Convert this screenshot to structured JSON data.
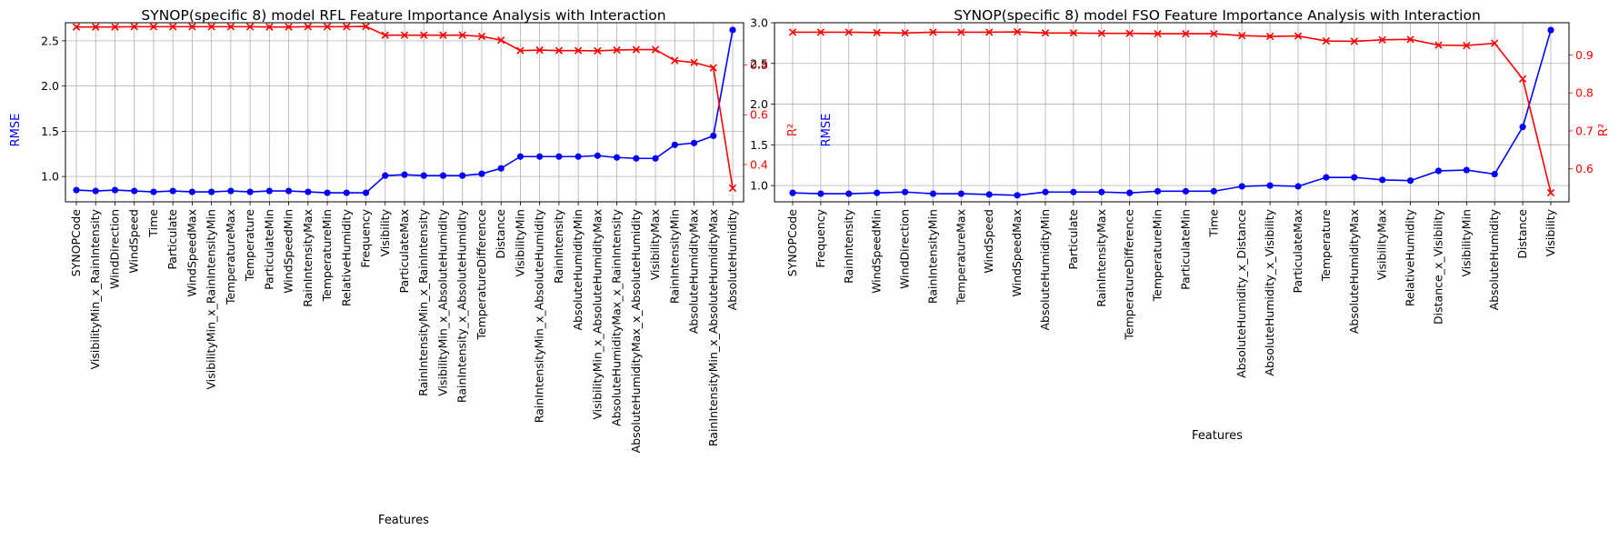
{
  "chart_data": [
    {
      "type": "line",
      "title": "SYNOP(specific 8) model RFL Feature Importance Analysis with Interaction",
      "xlabel": "Features",
      "ylabel_left": "RMSE",
      "ylabel_right": "R²",
      "grid": true,
      "ylim_left": [
        0.72,
        2.7
      ],
      "ylim_right": [
        0.25,
        0.97
      ],
      "yticks_left": [
        "1.0",
        "1.5",
        "2.0",
        "2.5"
      ],
      "yticks_right": [
        "0.4",
        "0.6",
        "0.8"
      ],
      "categories": [
        "SYNOPCode",
        "VisibilityMin_x_RainIntensity",
        "WindDirection",
        "WindSpeed",
        "Time",
        "Particulate",
        "WindSpeedMax",
        "VisibilityMin_x_RainIntensityMin",
        "TemperatureMax",
        "Temperature",
        "ParticulateMin",
        "WindSpeedMin",
        "RainIntensityMax",
        "TemperatureMin",
        "RelativeHumidity",
        "Frequency",
        "Visibility",
        "ParticulateMax",
        "RainIntensityMin_x_RainIntensity",
        "VisibilityMin_x_AbsoluteHumidity",
        "RainIntensity_x_AbsoluteHumidity",
        "TemperatureDifference",
        "Distance",
        "VisibilityMin",
        "RainIntensityMin_x_AbsoluteHumidity",
        "RainIntensity",
        "AbsoluteHumidityMin",
        "VisibilityMin_x_AbsoluteHumidityMax",
        "AbsoluteHumidityMax_x_RainIntensity",
        "AbsoluteHumidityMax_x_AbsoluteHumidity",
        "VisibilityMax",
        "RainIntensityMin",
        "AbsoluteHumidityMax",
        "RainIntensityMin_x_AbsoluteHumidityMax",
        "AbsoluteHumidity"
      ],
      "series": [
        {
          "name": "RMSE",
          "axis": "left",
          "color": "#0000ff",
          "marker": "circle",
          "values": [
            0.85,
            0.84,
            0.85,
            0.84,
            0.83,
            0.84,
            0.83,
            0.83,
            0.84,
            0.83,
            0.84,
            0.84,
            0.83,
            0.82,
            0.82,
            0.82,
            1.01,
            1.02,
            1.01,
            1.01,
            1.01,
            1.03,
            1.09,
            1.22,
            1.22,
            1.22,
            1.22,
            1.23,
            1.21,
            1.2,
            1.2,
            1.35,
            1.37,
            1.45,
            2.62
          ]
        },
        {
          "name": "R²",
          "axis": "right",
          "color": "#ff0000",
          "marker": "x",
          "values": [
            0.953,
            0.953,
            0.953,
            0.954,
            0.954,
            0.954,
            0.954,
            0.954,
            0.954,
            0.954,
            0.953,
            0.953,
            0.954,
            0.954,
            0.954,
            0.955,
            0.92,
            0.92,
            0.92,
            0.92,
            0.92,
            0.915,
            0.9,
            0.858,
            0.86,
            0.858,
            0.858,
            0.857,
            0.86,
            0.862,
            0.862,
            0.818,
            0.81,
            0.789,
            0.305
          ]
        }
      ]
    },
    {
      "type": "line",
      "title": "SYNOP(specific 8) model FSO Feature Importance Analysis with Interaction",
      "xlabel": "Features",
      "ylabel_left": "RMSE",
      "ylabel_right": "R²",
      "grid": true,
      "ylim_left": [
        0.8,
        3.0
      ],
      "ylim_right": [
        0.513,
        0.985
      ],
      "yticks_left": [
        "1.0",
        "1.5",
        "2.0",
        "2.5",
        "3.0"
      ],
      "yticks_right": [
        "0.6",
        "0.7",
        "0.8",
        "0.9"
      ],
      "categories": [
        "SYNOPCode",
        "Frequency",
        "RainIntensity",
        "WindSpeedMin",
        "WindDirection",
        "RainIntensityMin",
        "TemperatureMax",
        "WindSpeed",
        "WindSpeedMax",
        "AbsoluteHumidityMin",
        "Particulate",
        "RainIntensityMax",
        "TemperatureDifference",
        "TemperatureMin",
        "ParticulateMin",
        "Time",
        "AbsoluteHumidity_x_Distance",
        "AbsoluteHumidity_x_Visibility",
        "ParticulateMax",
        "Temperature",
        "AbsoluteHumidityMax",
        "VisibilityMax",
        "RelativeHumidity",
        "Distance_x_Visibility",
        "VisibilityMin",
        "AbsoluteHumidity",
        "Distance",
        "Visibility"
      ],
      "series": [
        {
          "name": "RMSE",
          "axis": "left",
          "color": "#0000ff",
          "marker": "circle",
          "values": [
            0.91,
            0.9,
            0.9,
            0.91,
            0.92,
            0.9,
            0.9,
            0.89,
            0.88,
            0.92,
            0.92,
            0.92,
            0.91,
            0.93,
            0.93,
            0.93,
            0.99,
            1.0,
            0.99,
            1.1,
            1.1,
            1.07,
            1.06,
            1.18,
            1.19,
            1.14,
            1.72,
            2.91
          ]
        },
        {
          "name": "R²",
          "axis": "right",
          "color": "#ff0000",
          "marker": "x",
          "values": [
            0.96,
            0.96,
            0.96,
            0.959,
            0.958,
            0.96,
            0.96,
            0.96,
            0.961,
            0.958,
            0.958,
            0.957,
            0.957,
            0.956,
            0.956,
            0.956,
            0.951,
            0.949,
            0.95,
            0.937,
            0.936,
            0.94,
            0.941,
            0.926,
            0.925,
            0.931,
            0.837,
            0.537
          ]
        }
      ]
    }
  ]
}
